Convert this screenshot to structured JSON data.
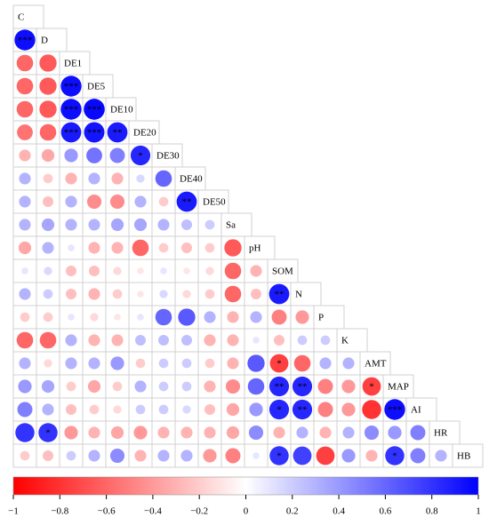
{
  "chart_data": {
    "type": "corrplot",
    "variables": [
      "C",
      "D",
      "DE1",
      "DE5",
      "DE10",
      "DE20",
      "DE30",
      "DE40",
      "DE50",
      "Sa",
      "pH",
      "SOM",
      "N",
      "P",
      "K",
      "AMT",
      "MAP",
      "AI",
      "HR",
      "HB"
    ],
    "values": [
      [],
      [
        0.95
      ],
      [
        -0.6,
        -0.65
      ],
      [
        -0.6,
        -0.65,
        0.95
      ],
      [
        -0.6,
        -0.65,
        0.95,
        0.97
      ],
      [
        -0.55,
        -0.6,
        0.9,
        0.92,
        0.9
      ],
      [
        -0.3,
        -0.35,
        0.4,
        0.55,
        0.5,
        0.85
      ],
      [
        0.3,
        -0.2,
        -0.3,
        0.3,
        -0.3,
        0.15,
        0.6
      ],
      [
        0.3,
        -0.25,
        0.3,
        -0.45,
        -0.45,
        0.3,
        -0.2,
        0.9
      ],
      [
        0.3,
        0.35,
        0.3,
        0.3,
        0.35,
        0.35,
        0.3,
        0.25,
        0.2
      ],
      [
        -0.35,
        0.3,
        0.1,
        -0.3,
        -0.3,
        -0.6,
        -0.2,
        -0.25,
        -0.2,
        -0.65
      ],
      [
        0.1,
        0.15,
        -0.25,
        -0.25,
        -0.15,
        -0.1,
        0.1,
        -0.1,
        -0.15,
        -0.6,
        -0.3
      ],
      [
        0.3,
        0.2,
        -0.25,
        -0.3,
        -0.2,
        -0.1,
        0.15,
        -0.15,
        -0.2,
        -0.6,
        -0.25,
        0.9
      ],
      [
        -0.2,
        -0.2,
        0.1,
        -0.15,
        -0.1,
        0.1,
        0.6,
        0.65,
        0.3,
        -0.3,
        0.3,
        -0.5,
        -0.4
      ],
      [
        -0.6,
        -0.6,
        0.3,
        -0.3,
        -0.3,
        0.25,
        0.25,
        0.25,
        -0.3,
        -0.3,
        0.1,
        -0.25,
        0.2,
        0.2
      ],
      [
        0.3,
        -0.15,
        0.3,
        0.3,
        0.4,
        -0.2,
        0.2,
        0.2,
        -0.2,
        -0.3,
        0.65,
        -0.75,
        -0.6,
        0.3,
        0.3
      ],
      [
        0.4,
        0.35,
        -0.2,
        -0.35,
        -0.2,
        0.3,
        0.2,
        0.2,
        -0.3,
        -0.45,
        0.6,
        0.85,
        0.85,
        -0.5,
        -0.4,
        -0.75
      ],
      [
        0.5,
        0.3,
        -0.25,
        -0.2,
        -0.15,
        0.2,
        0.2,
        0.15,
        -0.25,
        -0.35,
        0.4,
        0.85,
        0.85,
        -0.5,
        -0.4,
        -0.8,
        0.95
      ],
      [
        0.8,
        0.8,
        -0.4,
        -0.3,
        -0.35,
        -0.4,
        -0.3,
        -0.3,
        -0.3,
        -0.35,
        0.45,
        -0.3,
        0.3,
        -0.3,
        0.3,
        0.45,
        0.4,
        0.5
      ],
      [
        -0.2,
        -0.25,
        0.2,
        0.3,
        0.45,
        -0.3,
        0.3,
        0.3,
        -0.4,
        -0.5,
        0.1,
        0.8,
        0.75,
        -0.75,
        0.4,
        -0.3,
        0.8,
        0.5,
        0.3
      ]
    ],
    "significance": [
      [],
      [
        "***"
      ],
      [
        null,
        null
      ],
      [
        null,
        null,
        "***"
      ],
      [
        null,
        null,
        "***",
        "***"
      ],
      [
        null,
        null,
        "***",
        "***",
        "**"
      ],
      [
        null,
        null,
        null,
        null,
        null,
        "*"
      ],
      [
        null,
        null,
        null,
        null,
        null,
        null,
        null
      ],
      [
        null,
        null,
        null,
        null,
        null,
        null,
        null,
        "**"
      ],
      [
        null,
        null,
        null,
        null,
        null,
        null,
        null,
        null,
        null
      ],
      [
        null,
        null,
        null,
        null,
        null,
        null,
        null,
        null,
        null,
        null
      ],
      [
        null,
        null,
        null,
        null,
        null,
        null,
        null,
        null,
        null,
        null,
        null
      ],
      [
        null,
        null,
        null,
        null,
        null,
        null,
        null,
        null,
        null,
        null,
        null,
        "**"
      ],
      [
        null,
        null,
        null,
        null,
        null,
        null,
        null,
        null,
        null,
        null,
        null,
        null,
        null
      ],
      [
        null,
        null,
        null,
        null,
        null,
        null,
        null,
        null,
        null,
        null,
        null,
        null,
        null,
        null
      ],
      [
        null,
        null,
        null,
        null,
        null,
        null,
        null,
        null,
        null,
        null,
        null,
        "*",
        null,
        null,
        null
      ],
      [
        null,
        null,
        null,
        null,
        null,
        null,
        null,
        null,
        null,
        null,
        null,
        "**",
        "**",
        null,
        null,
        "*"
      ],
      [
        null,
        null,
        null,
        null,
        null,
        null,
        null,
        null,
        null,
        null,
        null,
        "*",
        "**",
        null,
        null,
        null,
        "***"
      ],
      [
        null,
        "*",
        null,
        null,
        null,
        null,
        null,
        null,
        null,
        null,
        null,
        null,
        null,
        null,
        null,
        null,
        null,
        null
      ],
      [
        null,
        null,
        null,
        null,
        null,
        null,
        null,
        null,
        null,
        null,
        null,
        "*",
        null,
        null,
        null,
        null,
        "*",
        null,
        null
      ]
    ],
    "colorbar_lim": [
      -1,
      1
    ],
    "colorbar_ticks": [
      {
        "value": -1,
        "label": "−1"
      },
      {
        "value": -0.8,
        "label": "−0.8"
      },
      {
        "value": -0.6,
        "label": "−0.6"
      },
      {
        "value": -0.4,
        "label": "−0.4"
      },
      {
        "value": -0.2,
        "label": "−0.2"
      },
      0,
      0.2,
      0.4,
      0.6,
      0.8,
      1
    ],
    "colors": {
      "negative": "#ff0000",
      "zero": "#ffffff",
      "positive": "#0000ff"
    }
  }
}
